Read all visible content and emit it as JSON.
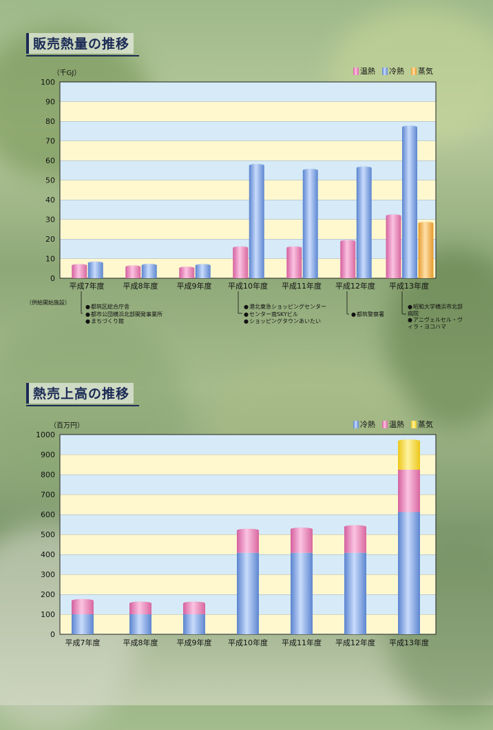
{
  "section1": {
    "title": "販売熱量の推移"
  },
  "section2": {
    "title": "熱売上高の推移"
  },
  "colors": {
    "warm": "#e98fc0",
    "cold": "#7fa3e0",
    "steam": "#f0b24a",
    "steam2": "#f2d640"
  },
  "chart_data": [
    {
      "type": "bar",
      "unit": "（千GJ）",
      "categories": [
        "平成7年度",
        "平成8年度",
        "平成9年度",
        "平成10年度",
        "平成11年度",
        "平成12年度",
        "平成13年度"
      ],
      "series": [
        {
          "name": "温熱",
          "values": [
            6.5,
            5.8,
            5.2,
            15.5,
            15.5,
            18.8,
            31.8
          ]
        },
        {
          "name": "冷熱",
          "values": [
            7.8,
            6.6,
            6.5,
            57.5,
            55.0,
            56.2,
            77.0
          ]
        },
        {
          "name": "蒸気",
          "values": [
            null,
            null,
            null,
            null,
            null,
            null,
            28.0
          ]
        }
      ],
      "ylim": [
        0,
        100
      ],
      "yticks": [
        0,
        10,
        20,
        30,
        40,
        50,
        60,
        70,
        80,
        90,
        100
      ],
      "legend": [
        "温熱",
        "冷熱",
        "蒸気"
      ],
      "legend_position": "top-right",
      "annotations": {
        "header": "（供給開始施設）",
        "groups": [
          [
            "都筑区総合庁舎",
            "都市公団横浜北部開発事業所",
            "まちづくり館"
          ],
          [
            "港北東急ショッピングセンター",
            "センター南SKYビル",
            "ショッピングタウンあいたい"
          ],
          [
            "都筑警察署"
          ],
          [
            "昭和大学横浜市北部病院",
            "アニヴェルセル・ヴィラ・ヨコハマ"
          ]
        ]
      }
    },
    {
      "type": "bar",
      "stacked": true,
      "unit": "（百万円）",
      "categories": [
        "平成7年度",
        "平成8年度",
        "平成9年度",
        "平成10年度",
        "平成11年度",
        "平成12年度",
        "平成13年度"
      ],
      "series": [
        {
          "name": "冷熱",
          "values": [
            100,
            100,
            100,
            408,
            408,
            408,
            612
          ]
        },
        {
          "name": "温熱",
          "values": [
            68,
            55,
            55,
            112,
            118,
            130,
            212
          ]
        },
        {
          "name": "蒸気",
          "values": [
            0,
            0,
            0,
            0,
            0,
            0,
            143
          ]
        }
      ],
      "ylim": [
        0,
        1000
      ],
      "yticks": [
        0,
        100,
        200,
        300,
        400,
        500,
        600,
        700,
        800,
        900,
        1000
      ],
      "legend": [
        "冷熱",
        "温熱",
        "蒸気"
      ],
      "legend_position": "top-right"
    }
  ]
}
